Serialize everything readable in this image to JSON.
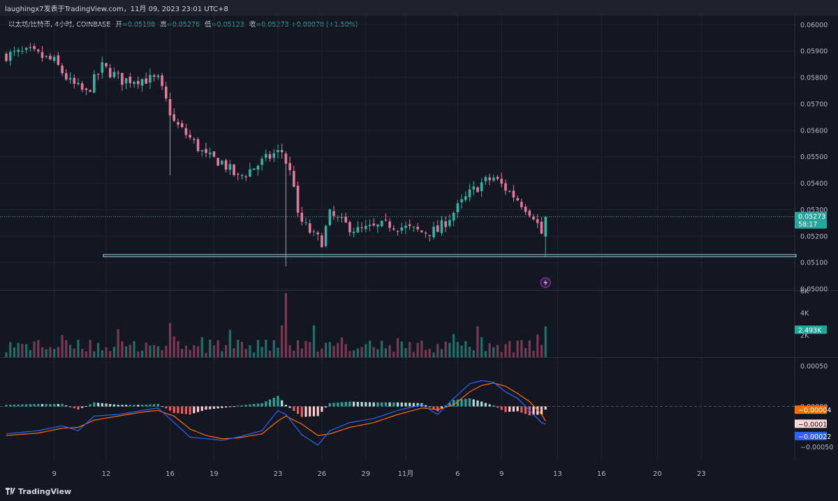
{
  "header": {
    "title": "laughingx7发表于TradingView.com，11月 09, 2023 23:01 UTC+8"
  },
  "legend": {
    "symbol": "以太坊/比特币, 4小时, COINBASE",
    "open_label": "开",
    "open": "=0.05198",
    "high_label": "高",
    "high": "=0.05276",
    "low_label": "低",
    "low": "=0.05123",
    "close_label": "收",
    "close": "=0.05273",
    "change": "+0.00078 (+1.50%)"
  },
  "colors": {
    "up": "#26a69a",
    "down": "#ef5350",
    "up_candle": "#2bb5a3",
    "down_candle": "#e8789a",
    "macd": "#2962ff",
    "signal": "#ff6d00",
    "support": "#a0d8ef"
  },
  "footer": {
    "brand": "TradingView"
  },
  "badges": {
    "price": "0.05273",
    "countdown": "58:17",
    "volume": "2.493K",
    "histogram": "−0.00004",
    "signal": "−0.00018",
    "macd": "−0.00022"
  },
  "chart_data": [
    {
      "type": "candlestick",
      "title": "以太坊/比特币, 4小时, COINBASE",
      "y_ticks": [
        "0.06000",
        "0.05900",
        "0.05800",
        "0.05700",
        "0.05600",
        "0.05500",
        "0.05400",
        "0.05300",
        "0.05200",
        "0.05100",
        "0.05000"
      ],
      "ylim": [
        0.04995,
        0.06035
      ],
      "x_ticks": [
        "9",
        "12",
        "16",
        "19",
        "23",
        "26",
        "29",
        "11月",
        "6",
        "9",
        "13",
        "16",
        "20",
        "23"
      ],
      "x_tick_bars": [
        12,
        25,
        41,
        52,
        68,
        79,
        90,
        100,
        113,
        124,
        138,
        149,
        163,
        174
      ],
      "bars_count": 128,
      "close_path": [
        [
          0,
          0.05885
        ],
        [
          6,
          0.05895
        ],
        [
          12,
          0.0586
        ],
        [
          16,
          0.0578
        ],
        [
          20,
          0.0574
        ],
        [
          24,
          0.0584
        ],
        [
          29,
          0.0579
        ],
        [
          33,
          0.05795
        ],
        [
          38,
          0.0579
        ],
        [
          42,
          0.0563
        ],
        [
          46,
          0.0557
        ],
        [
          50,
          0.055
        ],
        [
          54,
          0.0548
        ],
        [
          58,
          0.0542
        ],
        [
          63,
          0.0547
        ],
        [
          67,
          0.0551
        ],
        [
          69,
          0.0552
        ],
        [
          72,
          0.054
        ],
        [
          73,
          0.0527
        ],
        [
          77,
          0.052
        ],
        [
          79,
          0.0518
        ],
        [
          81,
          0.0528
        ],
        [
          84,
          0.0525
        ],
        [
          88,
          0.0522
        ],
        [
          92,
          0.0523
        ],
        [
          96,
          0.05245
        ],
        [
          100,
          0.0523
        ],
        [
          104,
          0.05215
        ],
        [
          108,
          0.0522
        ],
        [
          112,
          0.0529
        ],
        [
          116,
          0.0536
        ],
        [
          119,
          0.054
        ],
        [
          122,
          0.0542
        ],
        [
          125,
          0.0538
        ],
        [
          128,
          0.0534
        ],
        [
          132,
          0.0528
        ],
        [
          134,
          0.0521
        ],
        [
          135,
          0.05273
        ]
      ],
      "last_price": 0.05273,
      "support_line": {
        "value": 0.05126,
        "from_bar": 25
      },
      "event_marker_bar": 135
    },
    {
      "type": "bar",
      "title": "Volume",
      "y_ticks": [
        "6K",
        "4K",
        "2K"
      ],
      "ylim": [
        0,
        6000
      ],
      "last_value": 2493
    },
    {
      "type": "line",
      "title": "MACD",
      "y_ticks": [
        "0.00050",
        "0.00000",
        "−0.00050"
      ],
      "ylim": [
        -0.00067,
        0.0006
      ],
      "macd_path": [
        [
          0,
          -0.00034
        ],
        [
          8,
          -0.0003
        ],
        [
          14,
          -0.00024
        ],
        [
          18,
          -0.0003
        ],
        [
          22,
          -0.00012
        ],
        [
          28,
          -0.0001
        ],
        [
          34,
          -5e-05
        ],
        [
          38,
          -2e-05
        ],
        [
          42,
          -0.0002
        ],
        [
          46,
          -0.00038
        ],
        [
          50,
          -0.0004
        ],
        [
          54,
          -0.00042
        ],
        [
          58,
          -0.00038
        ],
        [
          64,
          -0.0003
        ],
        [
          68,
          -5e-05
        ],
        [
          70,
          -0.0001
        ],
        [
          74,
          -0.00035
        ],
        [
          78,
          -0.00048
        ],
        [
          81,
          -0.0003
        ],
        [
          86,
          -0.0002
        ],
        [
          92,
          -0.00015
        ],
        [
          98,
          -5e-05
        ],
        [
          104,
          2e-05
        ],
        [
          108,
          -0.0001
        ],
        [
          112,
          0.0001
        ],
        [
          116,
          0.00028
        ],
        [
          119,
          0.00032
        ],
        [
          122,
          0.0003
        ],
        [
          125,
          0.00018
        ],
        [
          128,
          0.0001
        ],
        [
          131,
          -5e-05
        ],
        [
          134,
          -0.0002
        ],
        [
          135,
          -0.00022
        ]
      ],
      "signal_path": [
        [
          0,
          -0.00036
        ],
        [
          8,
          -0.00033
        ],
        [
          14,
          -0.00027
        ],
        [
          18,
          -0.00026
        ],
        [
          22,
          -0.00017
        ],
        [
          28,
          -0.00012
        ],
        [
          34,
          -7e-05
        ],
        [
          38,
          -5e-05
        ],
        [
          42,
          -0.00012
        ],
        [
          46,
          -0.00028
        ],
        [
          50,
          -0.00036
        ],
        [
          54,
          -0.0004
        ],
        [
          58,
          -0.00039
        ],
        [
          64,
          -0.00034
        ],
        [
          68,
          -0.00018
        ],
        [
          70,
          -0.00012
        ],
        [
          74,
          -0.00022
        ],
        [
          78,
          -0.00036
        ],
        [
          81,
          -0.00034
        ],
        [
          86,
          -0.00026
        ],
        [
          92,
          -0.0002
        ],
        [
          98,
          -0.0001
        ],
        [
          104,
          -2e-05
        ],
        [
          108,
          -4e-05
        ],
        [
          112,
          2e-05
        ],
        [
          116,
          0.00018
        ],
        [
          119,
          0.00026
        ],
        [
          122,
          0.00029
        ],
        [
          125,
          0.00025
        ],
        [
          128,
          0.00016
        ],
        [
          131,
          6e-05
        ],
        [
          134,
          -0.0001
        ],
        [
          135,
          -0.00018
        ]
      ]
    }
  ]
}
